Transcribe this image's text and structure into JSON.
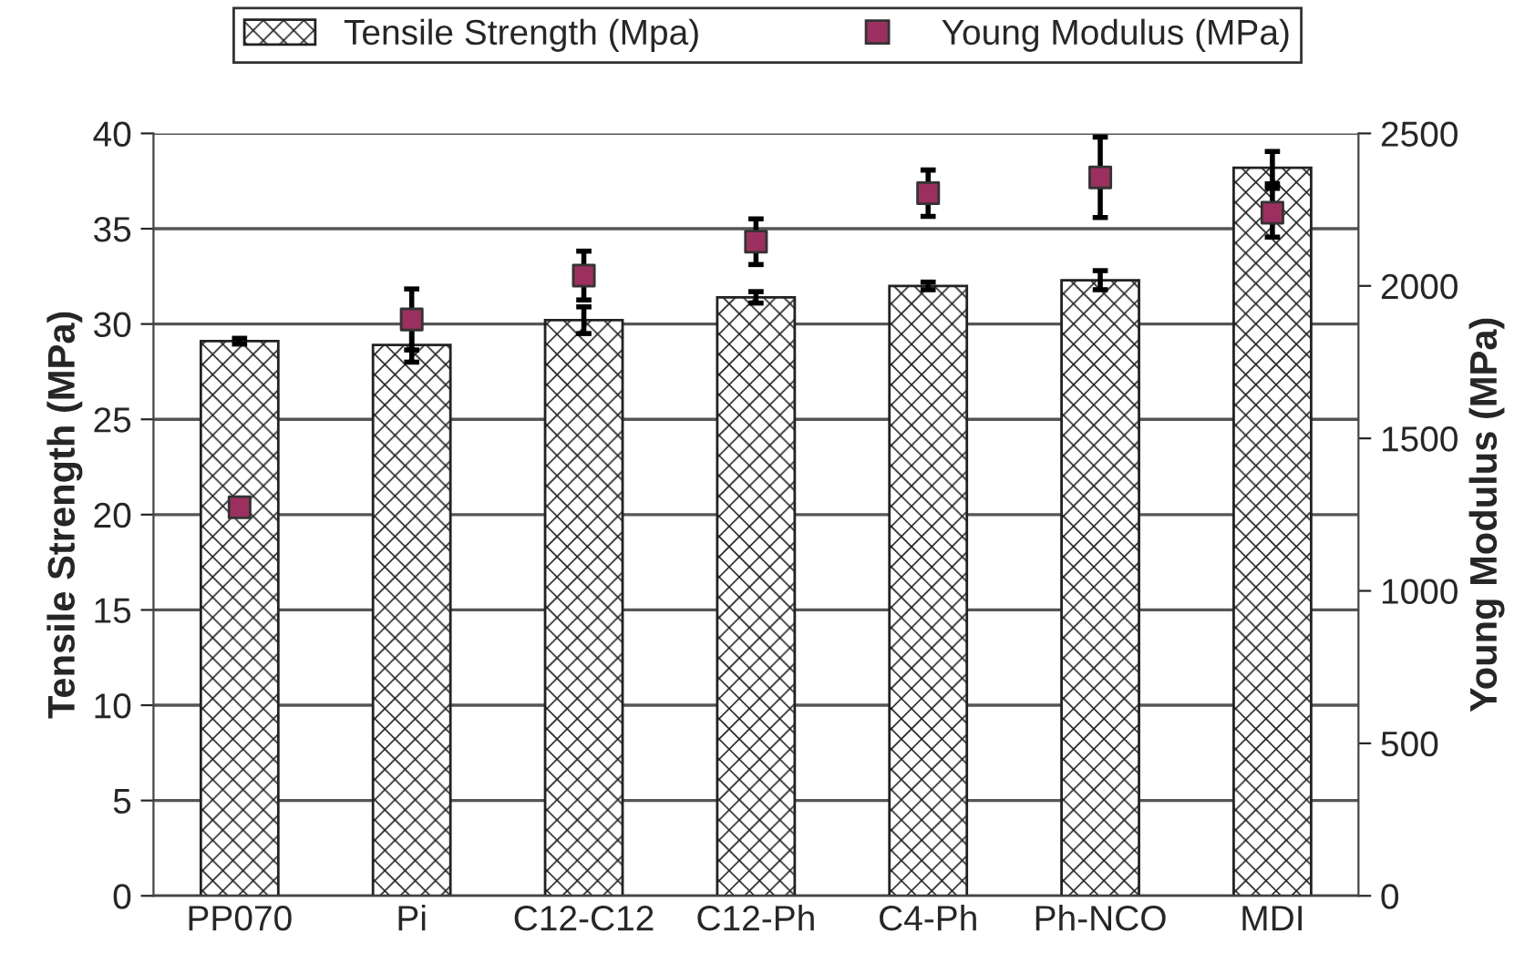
{
  "chart_data": {
    "type": "bar",
    "xlabel": null,
    "ylabel": "Tensile Strength (MPa)",
    "y2label": "Young Modulus (MPa)",
    "categories": [
      "PP070",
      "Pi",
      "C12-C12",
      "C12-Ph",
      "C4-Ph",
      "Ph-NCO",
      "MDI"
    ],
    "series": [
      {
        "name": "Tensile Strength (Mpa)",
        "color": "#222222",
        "values": [
          29.1,
          28.9,
          30.2,
          31.4,
          32.0,
          32.3,
          38.2
        ],
        "errors": [
          0.15,
          0.9,
          0.7,
          0.3,
          0.2,
          0.5,
          0.85
        ]
      },
      {
        "name": "Young Modulus (MPa)",
        "type": "scatter",
        "axis": "y2",
        "color": "#9b3060",
        "marker": "square",
        "values": [
          1274,
          1890,
          2034,
          2145,
          2304,
          2356,
          2240
        ],
        "errors": [
          null,
          100,
          80,
          75,
          76,
          132,
          80
        ]
      }
    ],
    "ylim": [
      0,
      40
    ],
    "yticks": [
      0,
      5,
      10,
      15,
      20,
      25,
      30,
      35,
      40
    ],
    "y2lim": [
      0,
      2500
    ],
    "y2ticks": [
      0,
      500,
      1000,
      1500,
      2000,
      2500
    ],
    "grid": "y",
    "legend": "top"
  }
}
